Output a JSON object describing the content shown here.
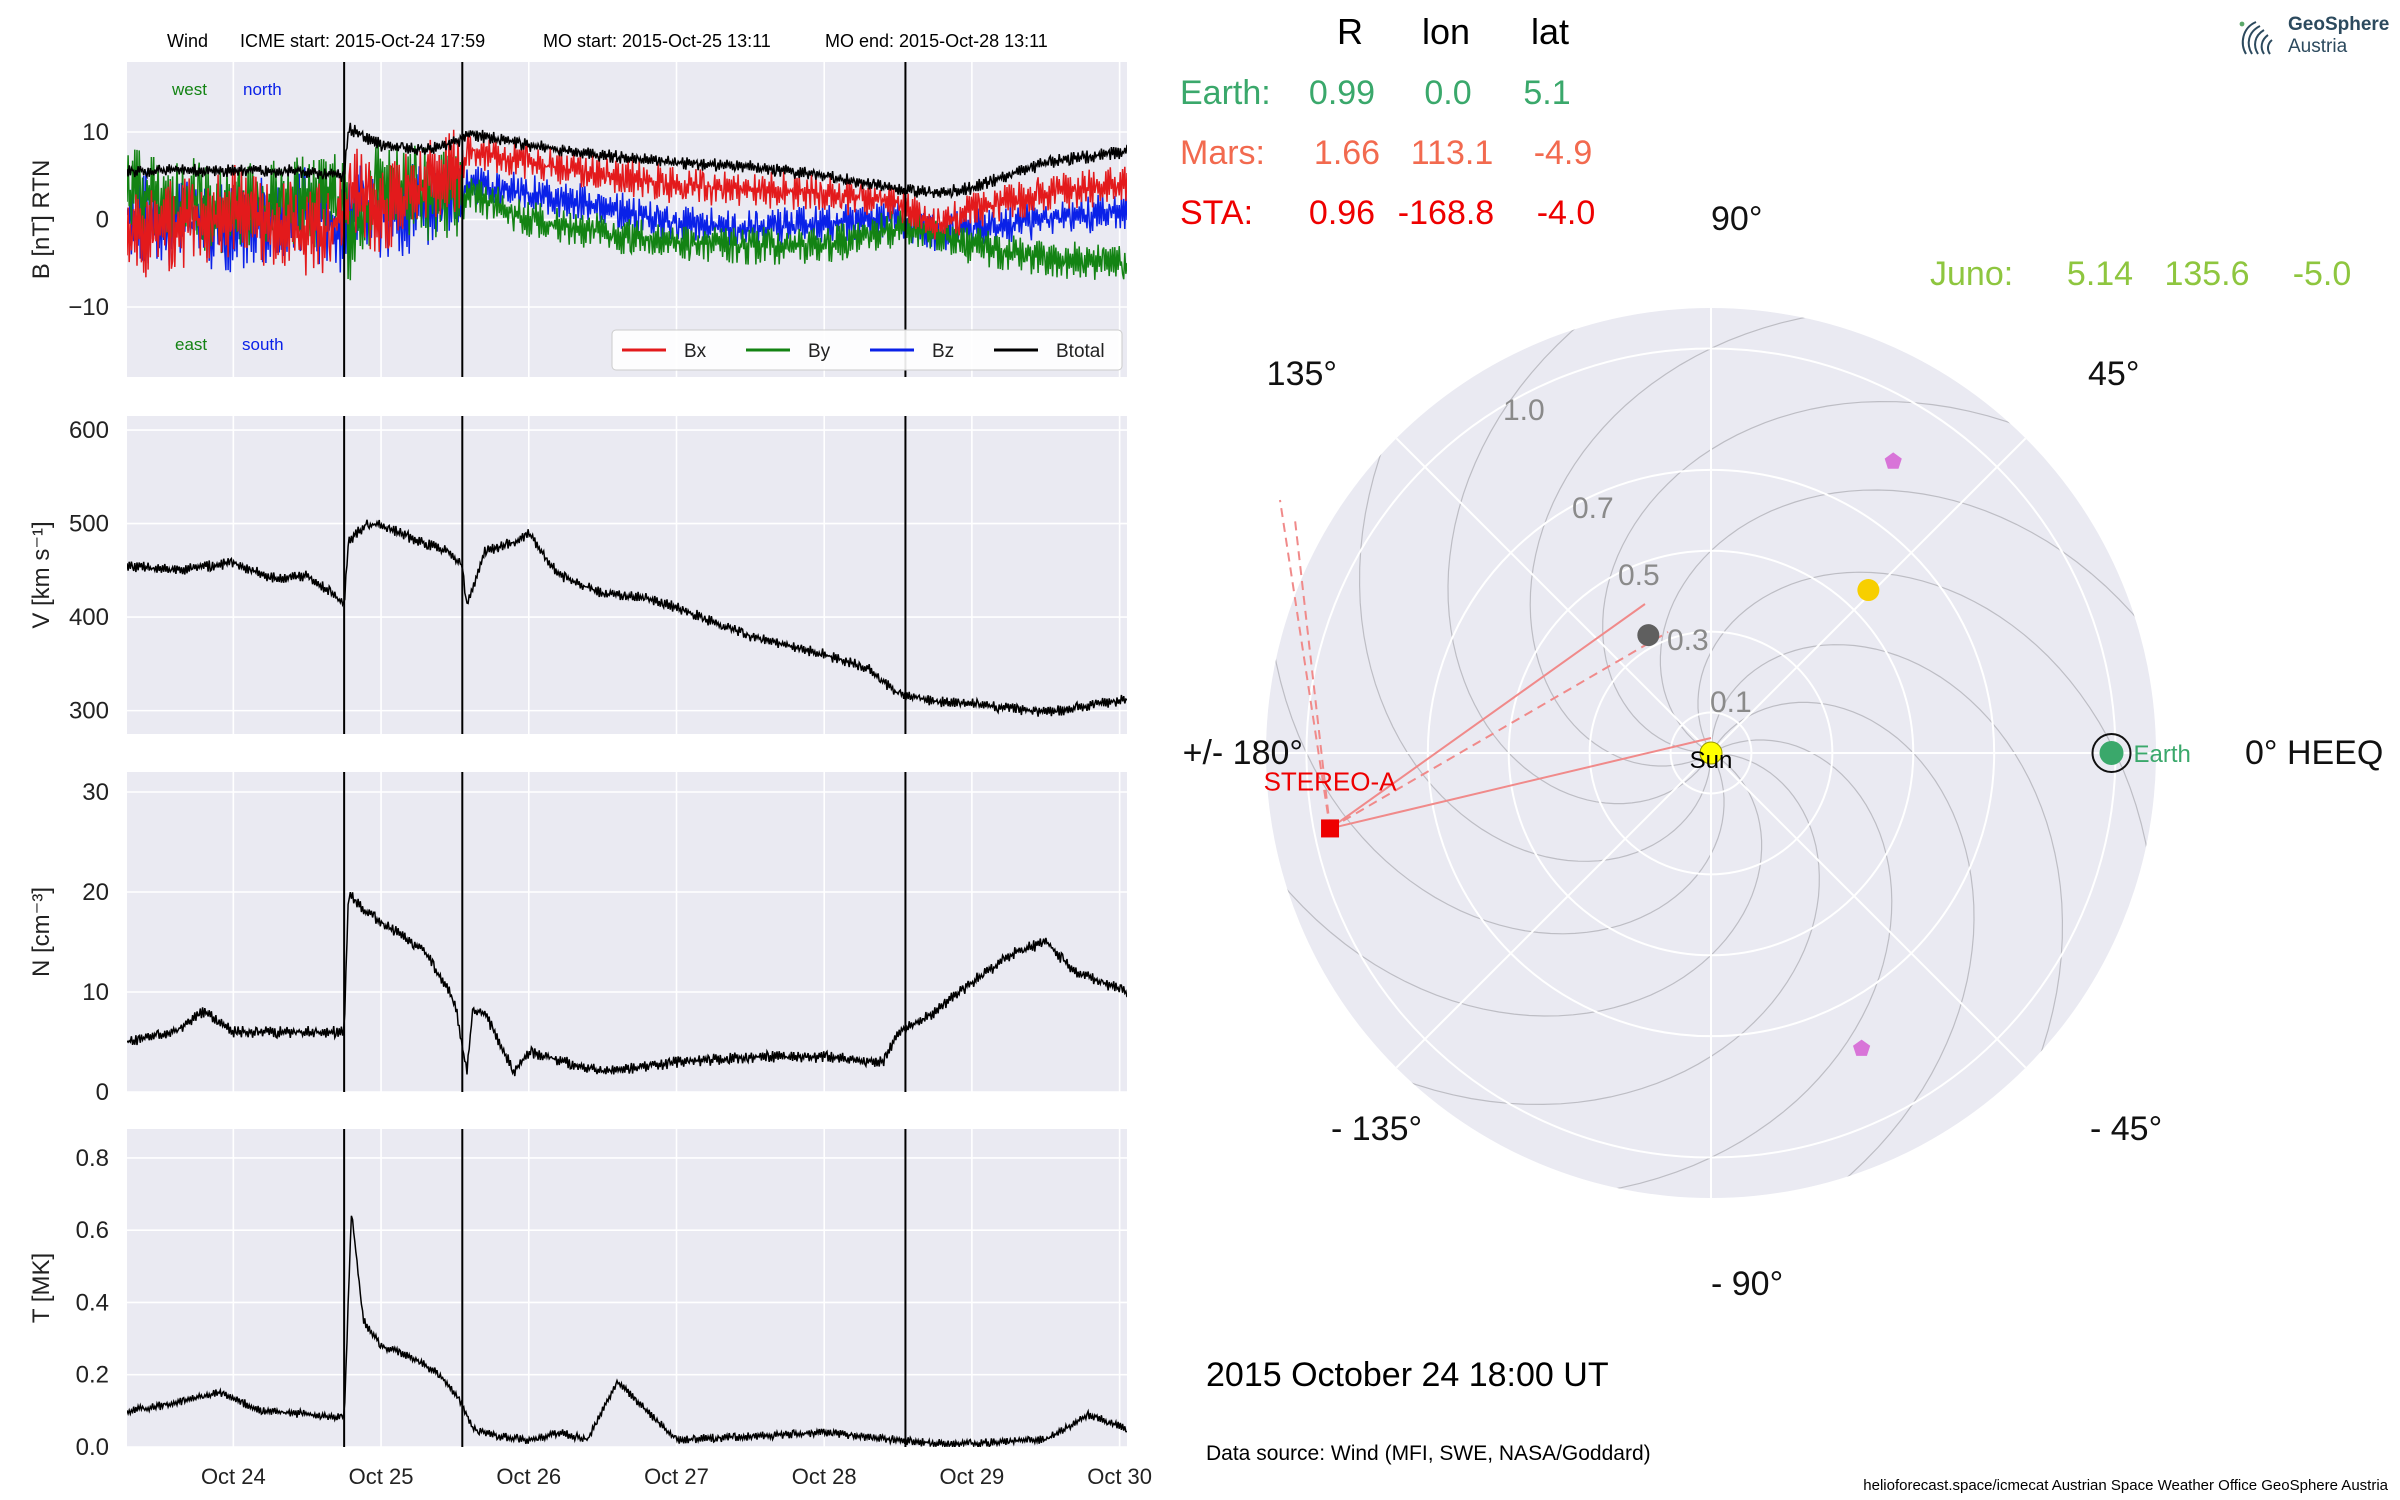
{
  "header": {
    "spacecraft": "Wind",
    "icme_start": "ICME start: 2015-Oct-24 17:59",
    "mo_start": "MO start: 2015-Oct-25 13:11",
    "mo_end": "MO end: 2015-Oct-28 13:11"
  },
  "logo": {
    "line1": "GeoSphere",
    "line2": "Austria"
  },
  "position_table": {
    "columns": [
      "R",
      "lon",
      "lat"
    ],
    "rows": [
      {
        "name": "Earth:",
        "R": "0.99",
        "lon": "0.0",
        "lat": "5.1",
        "color": "#3aa86b"
      },
      {
        "name": "Mars:",
        "R": "1.66",
        "lon": "113.1",
        "lat": "-4.9",
        "color": "#f26a4f"
      },
      {
        "name": "STA:",
        "R": "0.96",
        "lon": "-168.8",
        "lat": "-4.0",
        "color": "#ee0000"
      }
    ],
    "juno": {
      "name": "Juno:",
      "R": "5.14",
      "lon": "135.6",
      "lat": "-5.0",
      "color": "#8ec63f"
    }
  },
  "footer": {
    "datetime": "2015 October 24  18:00 UT",
    "data_source": "Data source: Wind (MFI, SWE, NASA/Goddard)",
    "credits": "helioforecast.space/icmecat   Austrian Space Weather Office   GeoSphere Austria"
  },
  "chart_data": [
    {
      "type": "line",
      "panel": "magnetic_field",
      "ylabel": "B [nT] RTN",
      "ylim": [
        -18,
        18
      ],
      "yticks": [
        -10,
        0,
        10
      ],
      "x_is_days_from_oct24": true,
      "xlim_days": [
        -0.72,
        6.05
      ],
      "corner_labels": {
        "west": "west",
        "north": "north",
        "east": "east",
        "south": "south"
      },
      "legend": [
        "Bx",
        "By",
        "Bz",
        "Btotal"
      ],
      "series": [
        {
          "name": "Btotal",
          "color": "#000000",
          "x": [
            -0.72,
            0.0,
            0.5,
            0.75,
            0.78,
            1.0,
            1.3,
            1.55,
            1.6,
            2.0,
            2.5,
            3.0,
            3.5,
            4.0,
            4.5,
            4.75,
            5.0,
            5.5,
            6.05
          ],
          "values": [
            5.6,
            5.6,
            5.5,
            5.0,
            10.5,
            8.5,
            8.0,
            9.0,
            9.8,
            8.5,
            7.3,
            6.5,
            6.0,
            5.0,
            3.4,
            3.0,
            3.6,
            6.5,
            7.8
          ]
        },
        {
          "name": "Bx",
          "color": "#e31a1c",
          "x": [
            -0.72,
            0.0,
            0.5,
            0.75,
            0.78,
            1.0,
            1.55,
            1.6,
            2.0,
            2.5,
            3.0,
            3.5,
            4.0,
            4.5,
            4.75,
            5.0,
            5.5,
            6.05
          ],
          "values": [
            -2.0,
            1.0,
            -1.5,
            0.0,
            3.5,
            1.0,
            6.0,
            8.0,
            6.5,
            5.0,
            4.0,
            3.5,
            3.0,
            2.0,
            -1.0,
            1.0,
            3.0,
            4.0
          ]
        },
        {
          "name": "By",
          "color": "#138313",
          "x": [
            -0.72,
            0.0,
            0.5,
            0.75,
            0.78,
            1.0,
            1.55,
            1.6,
            2.0,
            2.5,
            3.0,
            3.5,
            4.0,
            4.5,
            4.75,
            5.0,
            5.5,
            6.05
          ],
          "values": [
            3.0,
            1.0,
            2.0,
            2.5,
            -2.0,
            4.0,
            2.0,
            3.0,
            0.0,
            -1.5,
            -2.5,
            -3.0,
            -3.0,
            -1.0,
            -1.5,
            -3.0,
            -4.5,
            -5.0
          ]
        },
        {
          "name": "Bz",
          "color": "#0a21e8",
          "x": [
            -0.72,
            0.0,
            0.5,
            0.75,
            0.78,
            1.0,
            1.55,
            1.6,
            2.0,
            2.5,
            3.0,
            3.5,
            4.0,
            4.5,
            4.75,
            5.0,
            5.5,
            6.05
          ],
          "values": [
            0.5,
            -1.0,
            1.0,
            -2.0,
            2.0,
            0.0,
            3.0,
            4.0,
            3.0,
            1.5,
            -0.5,
            -1.0,
            -0.5,
            0.0,
            -1.5,
            -1.0,
            0.0,
            1.0
          ]
        }
      ]
    },
    {
      "type": "line",
      "panel": "speed",
      "ylabel": "V [km s⁻¹]",
      "ylim": [
        275,
        615
      ],
      "yticks": [
        300,
        400,
        500,
        600
      ],
      "series": [
        {
          "name": "V",
          "color": "#000000",
          "x": [
            -0.72,
            -0.4,
            0.0,
            0.3,
            0.5,
            0.75,
            0.78,
            0.9,
            1.0,
            1.2,
            1.45,
            1.55,
            1.58,
            1.7,
            1.9,
            2.0,
            2.2,
            2.5,
            2.8,
            3.0,
            3.5,
            4.0,
            4.3,
            4.5,
            4.75,
            5.0,
            5.5,
            6.05
          ],
          "values": [
            455,
            450,
            458,
            440,
            445,
            415,
            480,
            500,
            498,
            485,
            470,
            455,
            410,
            470,
            480,
            490,
            445,
            425,
            420,
            410,
            380,
            360,
            345,
            318,
            310,
            307,
            298,
            312
          ]
        }
      ]
    },
    {
      "type": "line",
      "panel": "density",
      "ylabel": "N [cm⁻³]",
      "ylim": [
        0,
        32
      ],
      "yticks": [
        0,
        10,
        20,
        30
      ],
      "series": [
        {
          "name": "N",
          "color": "#000000",
          "x": [
            -0.72,
            -0.4,
            -0.2,
            0.0,
            0.3,
            0.75,
            0.78,
            0.9,
            1.0,
            1.3,
            1.5,
            1.58,
            1.62,
            1.7,
            1.9,
            2.0,
            2.5,
            3.0,
            3.5,
            4.0,
            4.4,
            4.5,
            4.75,
            5.0,
            5.3,
            5.5,
            5.7,
            6.05
          ],
          "values": [
            5,
            6,
            8,
            6,
            6,
            6,
            20,
            18,
            17,
            14,
            9,
            2,
            8,
            8,
            2,
            4,
            2,
            3,
            3.5,
            3.5,
            3,
            6,
            8,
            11,
            14,
            15,
            12,
            10
          ]
        }
      ]
    },
    {
      "type": "line",
      "panel": "temperature",
      "ylabel": "T [MK]",
      "ylim": [
        0,
        0.88
      ],
      "yticks": [
        0.0,
        0.2,
        0.4,
        0.6,
        0.8
      ],
      "xticklabels": [
        "Oct 24",
        "Oct 25",
        "Oct 26",
        "Oct 27",
        "Oct 28",
        "Oct 29",
        "Oct 30"
      ],
      "xticks_days": [
        0,
        1,
        2,
        3,
        4,
        5,
        6
      ],
      "series": [
        {
          "name": "T",
          "color": "#000000",
          "x": [
            -0.72,
            -0.4,
            -0.1,
            0.2,
            0.5,
            0.75,
            0.8,
            0.88,
            1.0,
            1.2,
            1.4,
            1.55,
            1.62,
            1.8,
            2.0,
            2.2,
            2.4,
            2.6,
            3.0,
            3.5,
            4.0,
            4.5,
            4.75,
            5.0,
            5.5,
            5.8,
            6.05
          ],
          "values": [
            0.1,
            0.12,
            0.15,
            0.1,
            0.09,
            0.08,
            0.65,
            0.35,
            0.28,
            0.25,
            0.2,
            0.12,
            0.05,
            0.03,
            0.02,
            0.04,
            0.02,
            0.18,
            0.02,
            0.03,
            0.04,
            0.02,
            0.01,
            0.01,
            0.02,
            0.09,
            0.05
          ]
        }
      ]
    },
    {
      "type": "polar",
      "panel": "spacecraft_positions",
      "coordinate_system": "HEEQ",
      "angle_labels": [
        "0° HEEQ",
        "45°",
        "90°",
        "135°",
        "+/- 180°",
        "- 135°",
        "- 90°",
        "- 45°"
      ],
      "radial_ticks": [
        "0.1",
        "0.3",
        "0.5",
        "0.7",
        "1.0"
      ],
      "radial_values": [
        0.1,
        0.3,
        0.5,
        0.7,
        1.0
      ],
      "r_max": 1.1,
      "markers": [
        {
          "label": "Sun",
          "r": 0.0,
          "lon": 0.0,
          "shape": "circle",
          "color": "#ffff00"
        },
        {
          "label": "Earth",
          "r": 0.99,
          "lon": 0.0,
          "shape": "circle",
          "color": "#3aa86b"
        },
        {
          "label": "STEREO-A",
          "r": 0.96,
          "lon": -168.8,
          "shape": "square",
          "color": "#ee0000"
        },
        {
          "label": "",
          "r": 0.56,
          "lon": 46.0,
          "shape": "circle",
          "color": "#f7cf00"
        },
        {
          "label": "",
          "r": 0.85,
          "lon": 58.0,
          "shape": "pentagon",
          "color": "#d874d8"
        },
        {
          "label": "",
          "r": 0.82,
          "lon": -63.0,
          "shape": "pentagon",
          "color": "#d874d8"
        },
        {
          "label": "",
          "r": 0.33,
          "lon": 118.0,
          "shape": "circle",
          "color": "#5f5f5f"
        }
      ]
    }
  ]
}
